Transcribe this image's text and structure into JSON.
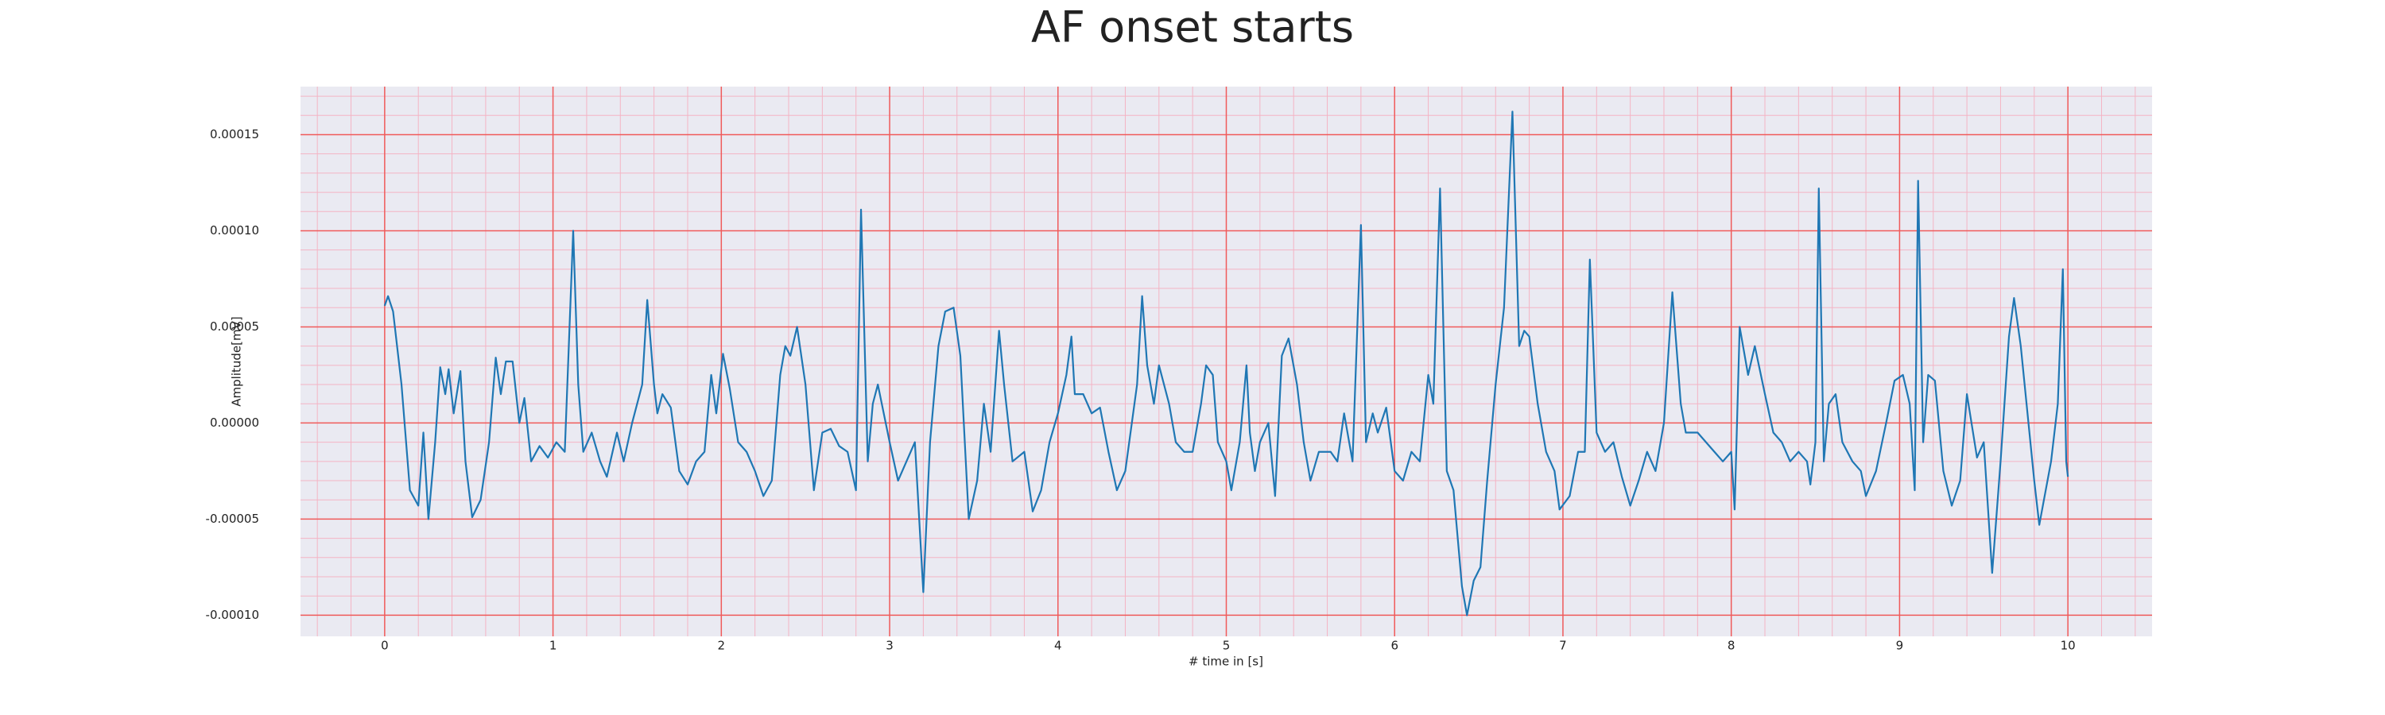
{
  "chart_data": {
    "type": "line",
    "title": "AF onset starts",
    "xlabel": "# time in [s]",
    "ylabel": "Amplitude[mV]",
    "color": "#1f77b4",
    "background": "#eaeaf2",
    "grid": true,
    "grid_color": "#f05a5a",
    "minor_grid_color": "#f4b4c4",
    "xlim": [
      -0.5,
      10.5
    ],
    "ylim": [
      -0.000111,
      0.000175
    ],
    "xticks": [
      0,
      1,
      2,
      3,
      4,
      5,
      6,
      7,
      8,
      9,
      10
    ],
    "yticks": [
      {
        "value": -0.0001,
        "label": "-0.00010"
      },
      -5e-05,
      {
        "value": 0,
        "label": "0.00000"
      },
      {
        "value": 0.0001,
        "label": "0.00010"
      },
      5e-05,
      0.00015
    ],
    "xminorticks": [
      -0.4,
      -0.2,
      0.2,
      0.4,
      0.6,
      0.8,
      1.2,
      1.4,
      1.6,
      1.8,
      2.2,
      2.4,
      2.6,
      2.8,
      3.2,
      3.4,
      3.6,
      3.8,
      4.2,
      4.4,
      4.6,
      4.8,
      5.2,
      5.4,
      5.6,
      5.8,
      6.2,
      6.4,
      6.6,
      6.8,
      7.2,
      7.4,
      7.6,
      7.8,
      8.2,
      8.4,
      8.6,
      8.8,
      9.2,
      9.4,
      9.6,
      9.8,
      10.2,
      10.4
    ],
    "yminorticks": [
      -9e-05,
      -8e-05,
      -7e-05,
      -6e-05,
      -4e-05,
      -3e-05,
      -2e-05,
      -1e-05,
      1e-05,
      2e-05,
      3e-05,
      4e-05,
      6e-05,
      7e-05,
      8e-05,
      9e-05,
      0.00011,
      0.00012,
      0.00013,
      0.00014,
      0.00016,
      0.00017
    ],
    "x": [
      0,
      0.02,
      0.05,
      0.1,
      0.15,
      0.2,
      0.23,
      0.26,
      0.3,
      0.33,
      0.36,
      0.38,
      0.41,
      0.45,
      0.48,
      0.52,
      0.57,
      0.62,
      0.66,
      0.69,
      0.72,
      0.76,
      0.8,
      0.83,
      0.87,
      0.92,
      0.97,
      1.02,
      1.07,
      1.12,
      1.15,
      1.18,
      1.23,
      1.28,
      1.32,
      1.38,
      1.42,
      1.47,
      1.53,
      1.56,
      1.6,
      1.62,
      1.65,
      1.7,
      1.75,
      1.8,
      1.85,
      1.9,
      1.94,
      1.97,
      2.01,
      2.05,
      2.1,
      2.15,
      2.2,
      2.25,
      2.3,
      2.35,
      2.38,
      2.41,
      2.45,
      2.5,
      2.55,
      2.6,
      2.65,
      2.7,
      2.75,
      2.8,
      2.83,
      2.87,
      2.9,
      2.93,
      3.0,
      3.05,
      3.1,
      3.15,
      3.2,
      3.24,
      3.29,
      3.33,
      3.38,
      3.42,
      3.47,
      3.52,
      3.56,
      3.6,
      3.65,
      3.68,
      3.73,
      3.8,
      3.85,
      3.9,
      3.95,
      4.0,
      4.05,
      4.08,
      4.1,
      4.15,
      4.2,
      4.25,
      4.3,
      4.35,
      4.4,
      4.47,
      4.5,
      4.53,
      4.57,
      4.6,
      4.66,
      4.7,
      4.75,
      4.8,
      4.85,
      4.88,
      4.92,
      4.95,
      5.0,
      5.03,
      5.08,
      5.12,
      5.14,
      5.17,
      5.2,
      5.25,
      5.29,
      5.33,
      5.37,
      5.42,
      5.46,
      5.5,
      5.55,
      5.62,
      5.66,
      5.7,
      5.75,
      5.8,
      5.83,
      5.87,
      5.9,
      5.95,
      6.0,
      6.05,
      6.1,
      6.15,
      6.2,
      6.23,
      6.27,
      6.31,
      6.35,
      6.4,
      6.43,
      6.47,
      6.51,
      6.55,
      6.6,
      6.65,
      6.7,
      6.74,
      6.77,
      6.8,
      6.85,
      6.9,
      6.95,
      6.98,
      7.04,
      7.09,
      7.13,
      7.16,
      7.2,
      7.25,
      7.3,
      7.35,
      7.4,
      7.45,
      7.5,
      7.55,
      7.6,
      7.65,
      7.7,
      7.73,
      7.8,
      7.85,
      7.9,
      7.95,
      8.0,
      8.02,
      8.05,
      8.1,
      8.14,
      8.2,
      8.25,
      8.3,
      8.35,
      8.4,
      8.45,
      8.47,
      8.5,
      8.52,
      8.55,
      8.58,
      8.62,
      8.66,
      8.72,
      8.77,
      8.8,
      8.86,
      8.92,
      8.97,
      9.02,
      9.06,
      9.09,
      9.11,
      9.14,
      9.17,
      9.21,
      9.26,
      9.31,
      9.36,
      9.4,
      9.46,
      9.5,
      9.55,
      9.6,
      9.65,
      9.68,
      9.72,
      9.8,
      9.83,
      9.9,
      9.94,
      9.97,
      9.99,
      10.0
    ],
    "values": [
      6.1e-05,
      6.6e-05,
      5.8e-05,
      2e-05,
      -3.5e-05,
      -4.3e-05,
      -5e-06,
      -5e-05,
      -1e-05,
      2.9e-05,
      1.5e-05,
      2.8e-05,
      5e-06,
      2.7e-05,
      -2e-05,
      -4.9e-05,
      -4e-05,
      -1e-05,
      3.4e-05,
      1.5e-05,
      3.2e-05,
      3.2e-05,
      0,
      1.3e-05,
      -2e-05,
      -1.2e-05,
      -1.8e-05,
      -1e-05,
      -1.5e-05,
      0.0001,
      2e-05,
      -1.5e-05,
      -5e-06,
      -2e-05,
      -2.8e-05,
      -5e-06,
      -2e-05,
      0,
      2e-05,
      6.4e-05,
      2e-05,
      5e-06,
      1.5e-05,
      8e-06,
      -2.5e-05,
      -3.2e-05,
      -2e-05,
      -1.5e-05,
      2.5e-05,
      5e-06,
      3.6e-05,
      1.8e-05,
      -1e-05,
      -1.5e-05,
      -2.5e-05,
      -3.8e-05,
      -3e-05,
      2.5e-05,
      4e-05,
      3.5e-05,
      5e-05,
      2e-05,
      -3.5e-05,
      -5e-06,
      -3e-06,
      -1.2e-05,
      -1.5e-05,
      -3.5e-05,
      0.000111,
      -2e-05,
      1e-05,
      2e-05,
      -1e-05,
      -3e-05,
      -2e-05,
      -1e-05,
      -8.8e-05,
      -1e-05,
      4e-05,
      5.8e-05,
      6e-05,
      3.5e-05,
      -5e-05,
      -3e-05,
      1e-05,
      -1.5e-05,
      4.8e-05,
      2e-05,
      -2e-05,
      -1.5e-05,
      -4.6e-05,
      -3.5e-05,
      -1e-05,
      5e-06,
      2.5e-05,
      4.5e-05,
      1.5e-05,
      1.5e-05,
      5e-06,
      8e-06,
      -1.5e-05,
      -3.5e-05,
      -2.5e-05,
      2e-05,
      6.6e-05,
      3e-05,
      1e-05,
      3e-05,
      1e-05,
      -1e-05,
      -1.5e-05,
      -1.5e-05,
      1e-05,
      3e-05,
      2.5e-05,
      -1e-05,
      -2e-05,
      -3.5e-05,
      -1e-05,
      3e-05,
      -5e-06,
      -2.5e-05,
      -1e-05,
      0,
      -3.8e-05,
      3.5e-05,
      4.4e-05,
      2e-05,
      -1e-05,
      -3e-05,
      -1.5e-05,
      -1.5e-05,
      -2e-05,
      5e-06,
      -2e-05,
      0.000103,
      -1e-05,
      5e-06,
      -5e-06,
      8e-06,
      -2.5e-05,
      -3e-05,
      -1.5e-05,
      -2e-05,
      2.5e-05,
      1e-05,
      0.000122,
      -2.5e-05,
      -3.5e-05,
      -8.5e-05,
      -0.0001,
      -8.2e-05,
      -7.5e-05,
      -3e-05,
      2e-05,
      6e-05,
      0.000162,
      4e-05,
      4.8e-05,
      4.5e-05,
      1e-05,
      -1.5e-05,
      -2.5e-05,
      -4.5e-05,
      -3.8e-05,
      -1.5e-05,
      -1.5e-05,
      8.5e-05,
      -5e-06,
      -1.5e-05,
      -1e-05,
      -2.8e-05,
      -4.3e-05,
      -3e-05,
      -1.5e-05,
      -2.5e-05,
      0,
      6.8e-05,
      1e-05,
      -5e-06,
      -5e-06,
      -1e-05,
      -1.5e-05,
      -2e-05,
      -1.5e-05,
      -4.5e-05,
      5e-05,
      2.5e-05,
      4e-05,
      1.5e-05,
      -5e-06,
      -1e-05,
      -2e-05,
      -1.5e-05,
      -2e-05,
      -3.2e-05,
      -1e-05,
      0.000122,
      -2e-05,
      1e-05,
      1.5e-05,
      -1e-05,
      -2e-05,
      -2.5e-05,
      -3.8e-05,
      -2.5e-05,
      0,
      2.2e-05,
      2.5e-05,
      1e-05,
      -3.5e-05,
      0.000126,
      -1e-05,
      2.5e-05,
      2.2e-05,
      -2.5e-05,
      -4.3e-05,
      -3e-05,
      1.5e-05,
      -1.8e-05,
      -1e-05,
      -7.8e-05,
      -2e-05,
      4.5e-05,
      6.5e-05,
      4e-05,
      -3e-05,
      -5.3e-05,
      -2e-05,
      1e-05,
      8e-05,
      -2e-05,
      -2.8e-05
    ]
  }
}
